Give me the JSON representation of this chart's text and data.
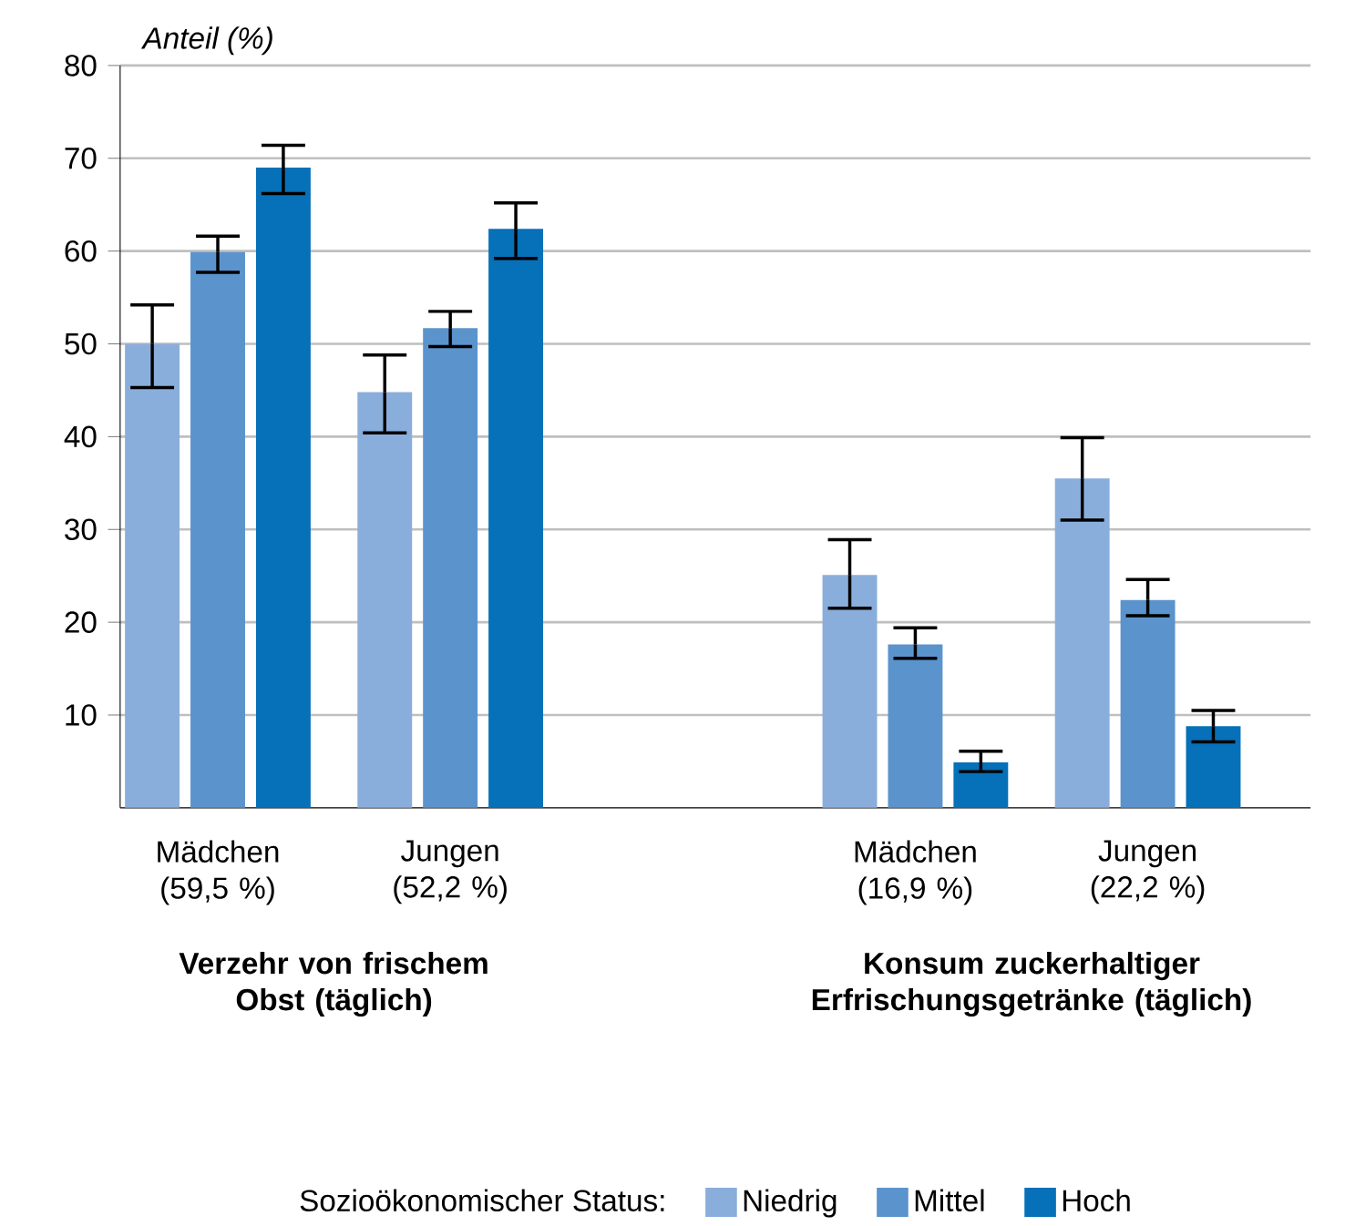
{
  "chart_data": {
    "type": "bar",
    "ylabel": "Anteil (%)",
    "categories": [
      "Mädchen (59,5 %)",
      "Jungen (52,2 %)",
      null,
      "Mädchen (16,9 %)",
      "Jungen (22,2 %)"
    ],
    "series": [
      {
        "name": "Niedrig",
        "color": "#8aaedb",
        "values": [
          50.0,
          44.8,
          null,
          25.1,
          35.5
        ],
        "errors": [
          [
            45.3,
            54.2
          ],
          [
            40.4,
            48.8
          ],
          null,
          [
            21.5,
            28.9
          ],
          [
            31.0,
            39.9
          ]
        ]
      },
      {
        "name": "Mittel",
        "color": "#5b93cd",
        "values": [
          59.9,
          51.7,
          null,
          17.6,
          22.4
        ],
        "errors": [
          [
            57.7,
            61.6
          ],
          [
            49.7,
            53.5
          ],
          null,
          [
            16.1,
            19.4
          ],
          [
            20.7,
            24.6
          ]
        ]
      },
      {
        "name": "Hoch",
        "color": "#0670b8",
        "values": [
          69.0,
          62.4,
          null,
          4.9,
          8.8
        ],
        "errors": [
          [
            66.2,
            71.4
          ],
          [
            59.2,
            65.2
          ],
          null,
          [
            3.9,
            6.1
          ],
          [
            7.1,
            10.5
          ]
        ]
      }
    ],
    "ylim": [
      0,
      80
    ],
    "yticks": [
      10,
      20,
      30,
      40,
      50,
      60,
      70,
      80
    ],
    "grid": "y",
    "legend": "bottom",
    "legend_title": "Sozioökonomischer Status:",
    "annotations": [
      "Verzehr von frischem Obst (täglich)",
      "Konsum zuckerhaltiger Erfrischungsgetränke (täglich)"
    ]
  }
}
